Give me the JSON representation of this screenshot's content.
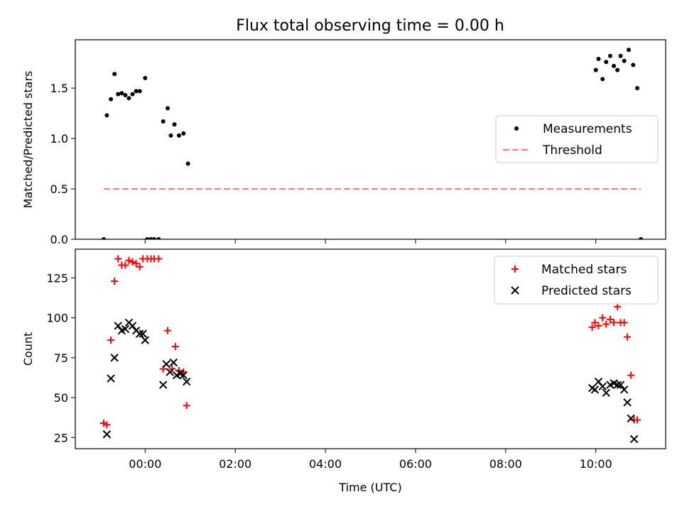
{
  "figure_title": "Flux total observing time = 0.00 h",
  "chart_data": [
    {
      "type": "scatter",
      "panel": "top",
      "ylabel": "Matched/Predicted stars",
      "xlabel": "",
      "x_unit": "hours (UTC)",
      "xlim": [
        -1.55,
        11.55
      ],
      "ylim": [
        0,
        1.98
      ],
      "xticks": [
        0,
        2,
        4,
        6,
        8,
        10
      ],
      "yticks": [
        0.0,
        0.5,
        1.0,
        1.5
      ],
      "ytick_labels": [
        "0.0",
        "0.5",
        "1.0",
        "1.5"
      ],
      "legend_position": "right",
      "legend": [
        "Measurements",
        "Threshold"
      ],
      "series": [
        {
          "name": "Measurements",
          "marker": "dot",
          "color": "#000000",
          "x": [
            -0.92,
            -0.85,
            -0.76,
            -0.68,
            -0.6,
            -0.52,
            -0.44,
            -0.36,
            -0.28,
            -0.2,
            -0.12,
            0.0,
            0.05,
            0.13,
            0.2,
            0.3,
            0.4,
            0.5,
            0.57,
            0.65,
            0.75,
            0.85,
            0.95,
            10.0,
            10.06,
            10.15,
            10.23,
            10.32,
            10.4,
            10.48,
            10.55,
            10.63,
            10.73,
            10.83,
            10.92,
            11.0
          ],
          "y": [
            0.0,
            1.23,
            1.39,
            1.64,
            1.44,
            1.45,
            1.43,
            1.4,
            1.44,
            1.47,
            1.47,
            1.6,
            0.0,
            0.0,
            0.0,
            0.0,
            1.17,
            1.3,
            1.03,
            1.14,
            1.03,
            1.05,
            0.75,
            1.68,
            1.79,
            1.59,
            1.76,
            1.82,
            1.72,
            1.68,
            1.82,
            1.77,
            1.88,
            1.73,
            1.5,
            0.0
          ]
        },
        {
          "name": "Threshold",
          "style": "dashed",
          "color": "#ff8080",
          "x": [
            -0.92,
            11.0
          ],
          "y": [
            0.5,
            0.5
          ]
        }
      ]
    },
    {
      "type": "scatter",
      "panel": "bottom",
      "ylabel": "Count",
      "xlabel": "Time (UTC)",
      "x_unit": "hours (UTC)",
      "xlim": [
        -1.55,
        11.55
      ],
      "ylim": [
        18,
        143
      ],
      "xticks": [
        0,
        2,
        4,
        6,
        8,
        10
      ],
      "xtick_labels": [
        "00:00",
        "02:00",
        "04:00",
        "06:00",
        "08:00",
        "10:00"
      ],
      "yticks": [
        25,
        50,
        75,
        100,
        125
      ],
      "ytick_labels": [
        "25",
        "50",
        "75",
        "100",
        "125"
      ],
      "legend_position": "top-right",
      "legend": [
        "Matched stars",
        "Predicted stars"
      ],
      "series": [
        {
          "name": "Matched stars",
          "marker": "plus",
          "color": "#ff0000",
          "x": [
            -0.92,
            -0.85,
            -0.76,
            -0.68,
            -0.6,
            -0.52,
            -0.44,
            -0.36,
            -0.28,
            -0.2,
            -0.12,
            -0.05,
            0.05,
            0.13,
            0.2,
            0.3,
            0.4,
            0.5,
            0.6,
            0.67,
            0.75,
            0.85,
            0.92,
            9.92,
            9.98,
            10.06,
            10.15,
            10.23,
            10.32,
            10.4,
            10.48,
            10.55,
            10.63,
            10.7,
            10.78,
            10.85,
            10.92
          ],
          "y": [
            34,
            33,
            86,
            123,
            137,
            133,
            133,
            136,
            135,
            134,
            132,
            137,
            137,
            137,
            137,
            137,
            68,
            92,
            68,
            82,
            67,
            66,
            45,
            94,
            97,
            95,
            100,
            96,
            99,
            97,
            107,
            97,
            97,
            88,
            64,
            36,
            36
          ]
        },
        {
          "name": "Predicted stars",
          "marker": "x",
          "color": "#000000",
          "x": [
            -0.85,
            -0.76,
            -0.68,
            -0.6,
            -0.52,
            -0.44,
            -0.36,
            -0.28,
            -0.2,
            -0.12,
            -0.05,
            0.0,
            0.4,
            0.47,
            0.55,
            0.63,
            0.7,
            0.78,
            0.85,
            0.92,
            9.92,
            9.98,
            10.06,
            10.15,
            10.23,
            10.32,
            10.4,
            10.48,
            10.55,
            10.63,
            10.7,
            10.78,
            10.85
          ],
          "y": [
            27,
            62,
            75,
            95,
            92,
            93,
            97,
            95,
            92,
            90,
            90,
            86,
            58,
            71,
            66,
            72,
            64,
            65,
            64,
            60,
            56,
            55,
            60,
            57,
            53,
            58,
            59,
            58,
            58,
            55,
            47,
            37,
            24
          ]
        }
      ]
    }
  ]
}
